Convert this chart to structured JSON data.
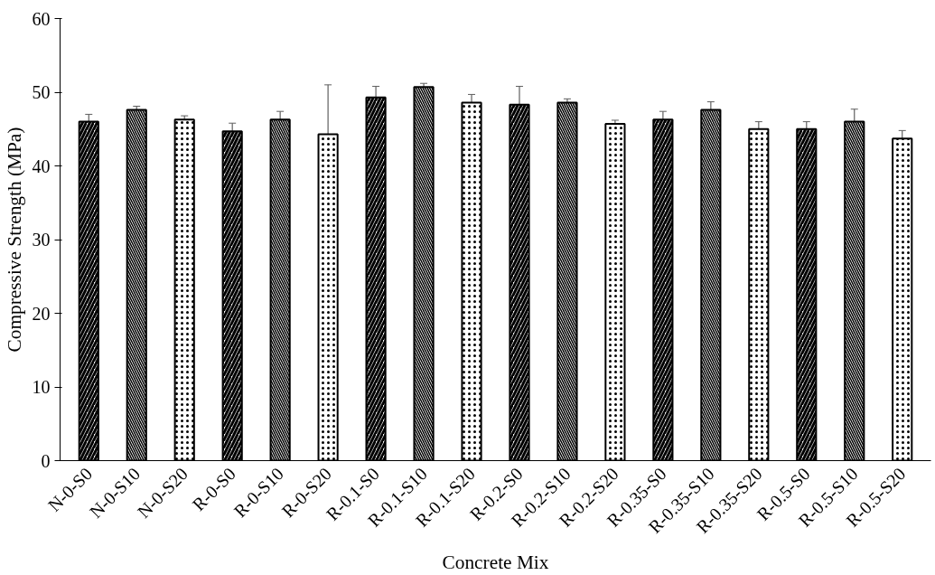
{
  "chart_data": {
    "type": "bar",
    "xlabel": "Concrete Mix",
    "ylabel": "Compressive Strength (MPa)",
    "categories": [
      "N-0-S0",
      "N-0-S10",
      "N-0-S20",
      "R-0-S0",
      "R-0-S10",
      "R-0-S20",
      "R-0.1-S0",
      "R-0.1-S10",
      "R-0.1-S20",
      "R-0.2-S0",
      "R-0.2-S10",
      "R-0.2-S20",
      "R-0.35-S0",
      "R-0.35-S10",
      "R-0.35-S20",
      "R-0.5-S0",
      "R-0.5-S10",
      "R-0.5-S20"
    ],
    "values": [
      46.0,
      47.6,
      46.3,
      44.7,
      46.3,
      44.3,
      49.3,
      50.7,
      48.6,
      48.3,
      48.6,
      45.7,
      46.3,
      47.6,
      45.0,
      45.0,
      46.0,
      43.7
    ],
    "errors": [
      1.0,
      0.5,
      0.5,
      1.1,
      1.1,
      6.7,
      1.5,
      0.5,
      1.1,
      2.5,
      0.5,
      0.5,
      1.1,
      1.1,
      1.0,
      1.0,
      1.7,
      1.1
    ],
    "color": "#000000",
    "ylim": [
      0,
      60
    ],
    "yticks": [
      0,
      10,
      20,
      30,
      40,
      50,
      60
    ],
    "grid": false
  }
}
